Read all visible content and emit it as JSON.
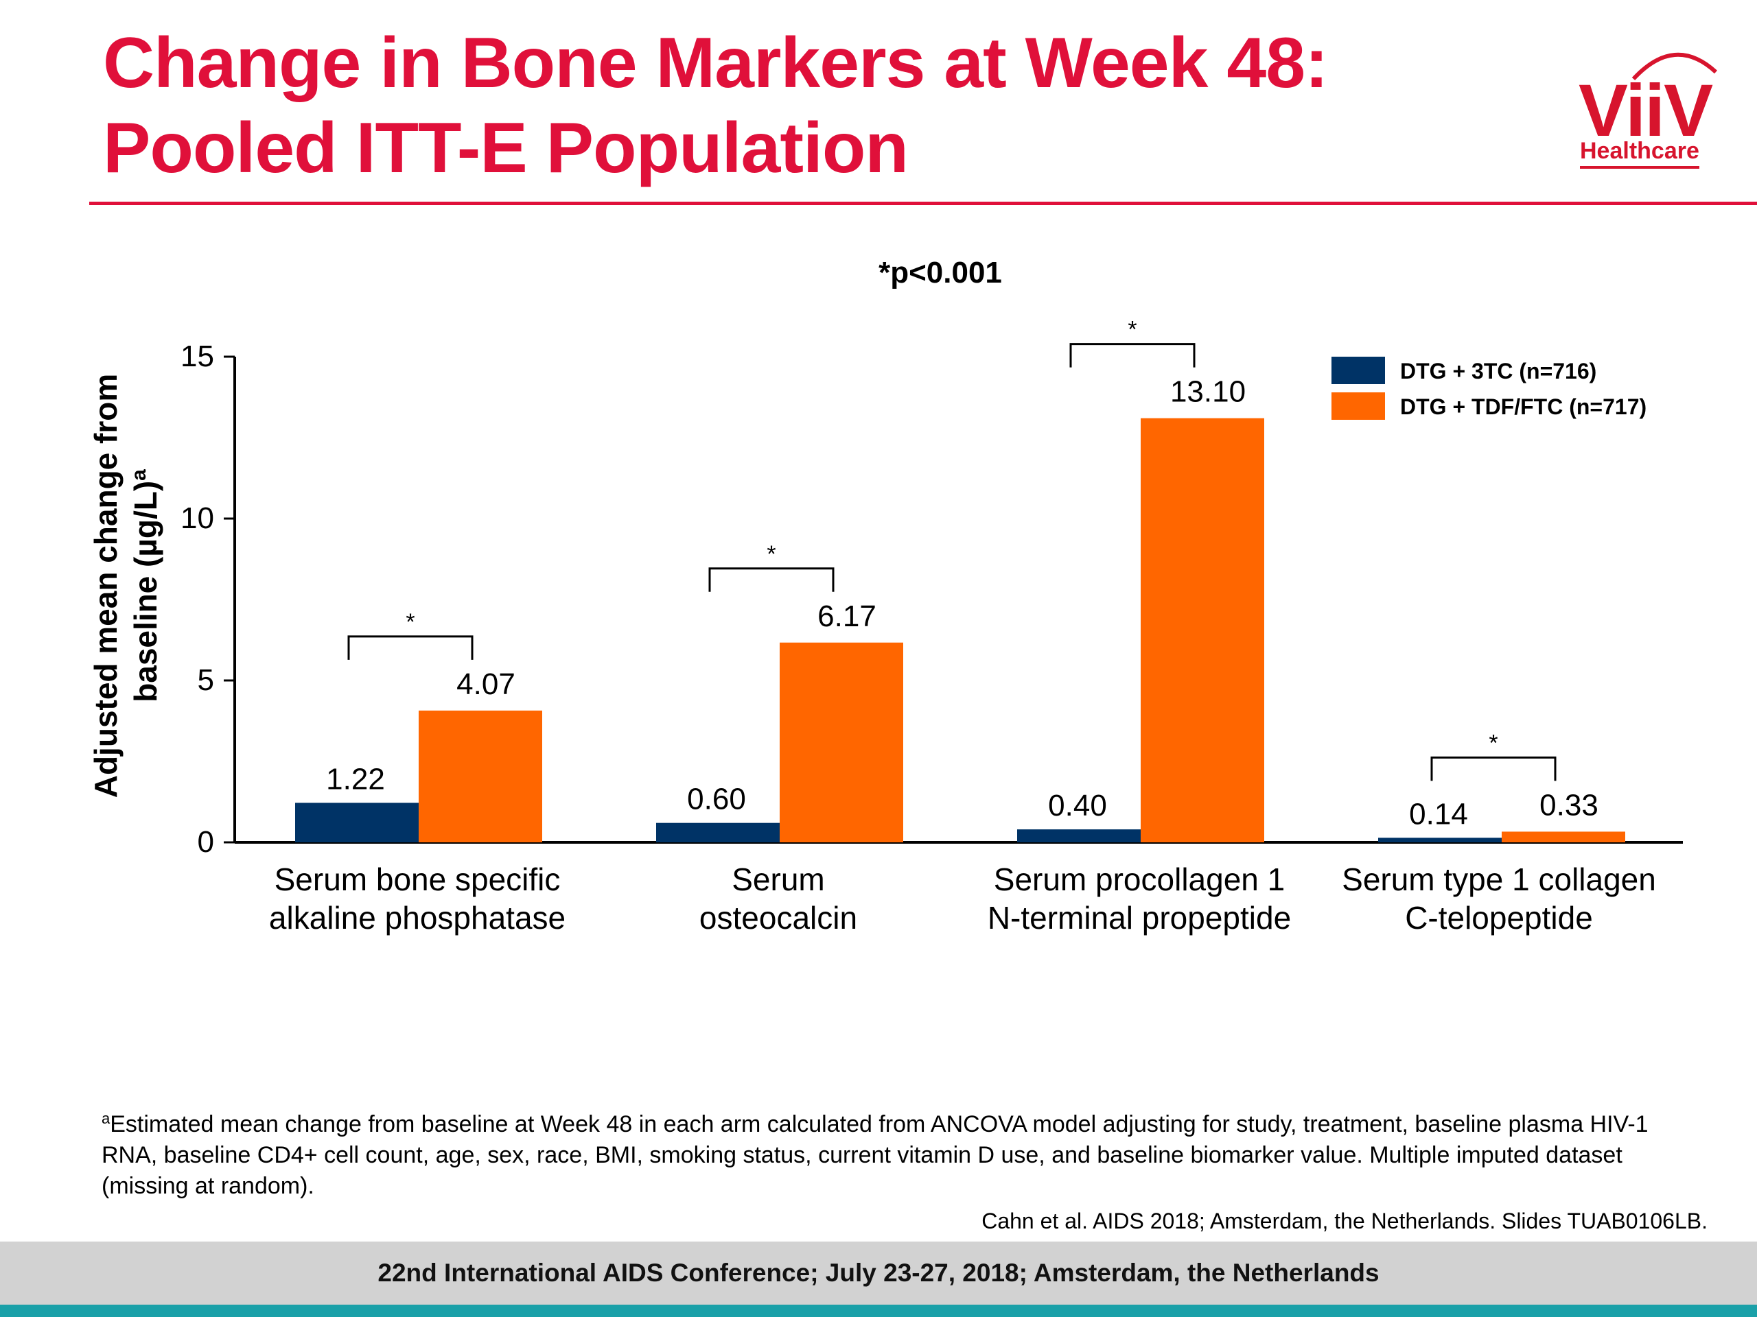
{
  "header": {
    "title_line1": "Change in Bone Markers at Week 48:",
    "title_line2": "Pooled ITT-E Population",
    "logo_word": "ViiV",
    "logo_sub": "Healthcare",
    "brand_color": "#e0103a"
  },
  "chart_data": {
    "type": "bar",
    "significance_note": "*p<0.001",
    "ylabel_line1": "Adjusted mean change from",
    "ylabel_line2": "baseline (µg/L)",
    "ylabel_superscript": "a",
    "ylim": [
      0,
      15
    ],
    "yticks": [
      0,
      5,
      10,
      15
    ],
    "grid": false,
    "legend_position": "top-right",
    "categories": [
      [
        "Serum bone specific",
        "alkaline phosphatase"
      ],
      [
        "Serum",
        "osteocalcin"
      ],
      [
        "Serum procollagen 1",
        "N-terminal propeptide"
      ],
      [
        "Serum type 1 collagen",
        "C-telopeptide"
      ]
    ],
    "series": [
      {
        "name": "DTG + 3TC (n=716)",
        "color": "#003366",
        "values": [
          1.22,
          0.6,
          0.4,
          0.14
        ],
        "labels": [
          "1.22",
          "0.60",
          "0.40",
          "0.14"
        ]
      },
      {
        "name": "DTG + TDF/FTC (n=717)",
        "color": "#ff6600",
        "values": [
          4.07,
          6.17,
          13.1,
          0.33
        ],
        "labels": [
          "4.07",
          "6.17",
          "13.10",
          "0.33"
        ]
      }
    ],
    "significance_marker": "*",
    "significant": [
      true,
      true,
      true,
      true
    ]
  },
  "footnote": {
    "marker": "a",
    "text": "Estimated mean change from baseline at Week 48 in each arm calculated from ANCOVA model adjusting for study, treatment, baseline plasma HIV-1 RNA, baseline CD4+ cell count, age, sex, race, BMI, smoking status, current vitamin D use, and baseline biomarker value. Multiple imputed dataset (missing at random)."
  },
  "citation": "Cahn et al. AIDS 2018; Amsterdam, the Netherlands. Slides TUAB0106LB.",
  "footer": {
    "conference": "22nd International AIDS Conference; July 23-27, 2018; Amsterdam, the Netherlands"
  }
}
